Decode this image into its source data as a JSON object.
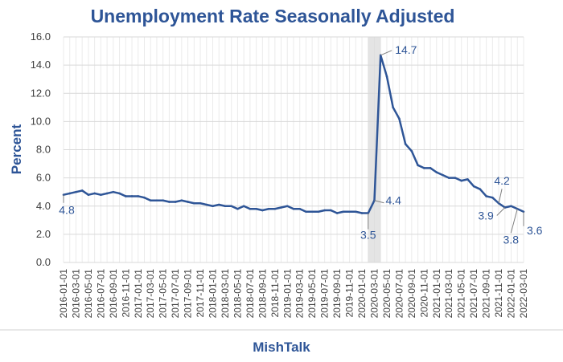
{
  "chart_data": {
    "type": "line",
    "title": "Unemployment Rate Seasonally Adjusted",
    "xlabel": "",
    "ylabel": "Percent",
    "ylim": [
      0,
      16
    ],
    "yticks": [
      "0.0",
      "2.0",
      "4.0",
      "6.0",
      "8.0",
      "10.0",
      "12.0",
      "14.0",
      "16.0"
    ],
    "grid": true,
    "x_tick_labels": [
      "2016-01-01",
      "2016-03-01",
      "2016-05-01",
      "2016-07-01",
      "2016-09-01",
      "2016-11-01",
      "2017-01-01",
      "2017-03-01",
      "2017-05-01",
      "2017-07-01",
      "2017-09-01",
      "2017-11-01",
      "2018-01-01",
      "2018-03-01",
      "2018-05-01",
      "2018-07-01",
      "2018-09-01",
      "2018-11-01",
      "2019-01-01",
      "2019-03-01",
      "2019-05-01",
      "2019-07-01",
      "2019-09-01",
      "2019-11-01",
      "2020-01-01",
      "2020-03-01",
      "2020-05-01",
      "2020-07-01",
      "2020-09-01",
      "2020-11-01",
      "2021-01-01",
      "2021-03-01",
      "2021-05-01",
      "2021-07-01",
      "2021-09-01",
      "2021-11-01",
      "2022-01-01",
      "2022-03-01"
    ],
    "series": [
      {
        "name": "Unemployment Rate",
        "color": "#2e5597",
        "values": [
          4.8,
          4.9,
          5.0,
          5.1,
          4.8,
          4.9,
          4.8,
          4.9,
          5.0,
          4.9,
          4.7,
          4.7,
          4.7,
          4.6,
          4.4,
          4.4,
          4.4,
          4.3,
          4.3,
          4.4,
          4.3,
          4.2,
          4.2,
          4.1,
          4.0,
          4.1,
          4.0,
          4.0,
          3.8,
          4.0,
          3.8,
          3.8,
          3.7,
          3.8,
          3.8,
          3.9,
          4.0,
          3.8,
          3.8,
          3.6,
          3.6,
          3.6,
          3.7,
          3.7,
          3.5,
          3.6,
          3.6,
          3.6,
          3.5,
          3.5,
          4.4,
          14.7,
          13.2,
          11.0,
          10.2,
          8.4,
          7.9,
          6.9,
          6.7,
          6.7,
          6.4,
          6.2,
          6.0,
          6.0,
          5.8,
          5.9,
          5.4,
          5.2,
          4.7,
          4.6,
          4.2,
          3.9,
          4.0,
          3.8,
          3.6
        ]
      }
    ],
    "shaded_region_months": [
      "2020-02-01",
      "2020-04-01"
    ],
    "annotations": [
      {
        "text": "4.8",
        "index": 0
      },
      {
        "text": "3.5",
        "index": 49
      },
      {
        "text": "4.4",
        "index": 50
      },
      {
        "text": "14.7",
        "index": 51
      },
      {
        "text": "4.2",
        "index": 70
      },
      {
        "text": "3.9",
        "index": 71
      },
      {
        "text": "3.8",
        "index": 73
      },
      {
        "text": "3.6",
        "index": 74
      }
    ]
  },
  "footer": {
    "source_label": "MishTalk"
  }
}
